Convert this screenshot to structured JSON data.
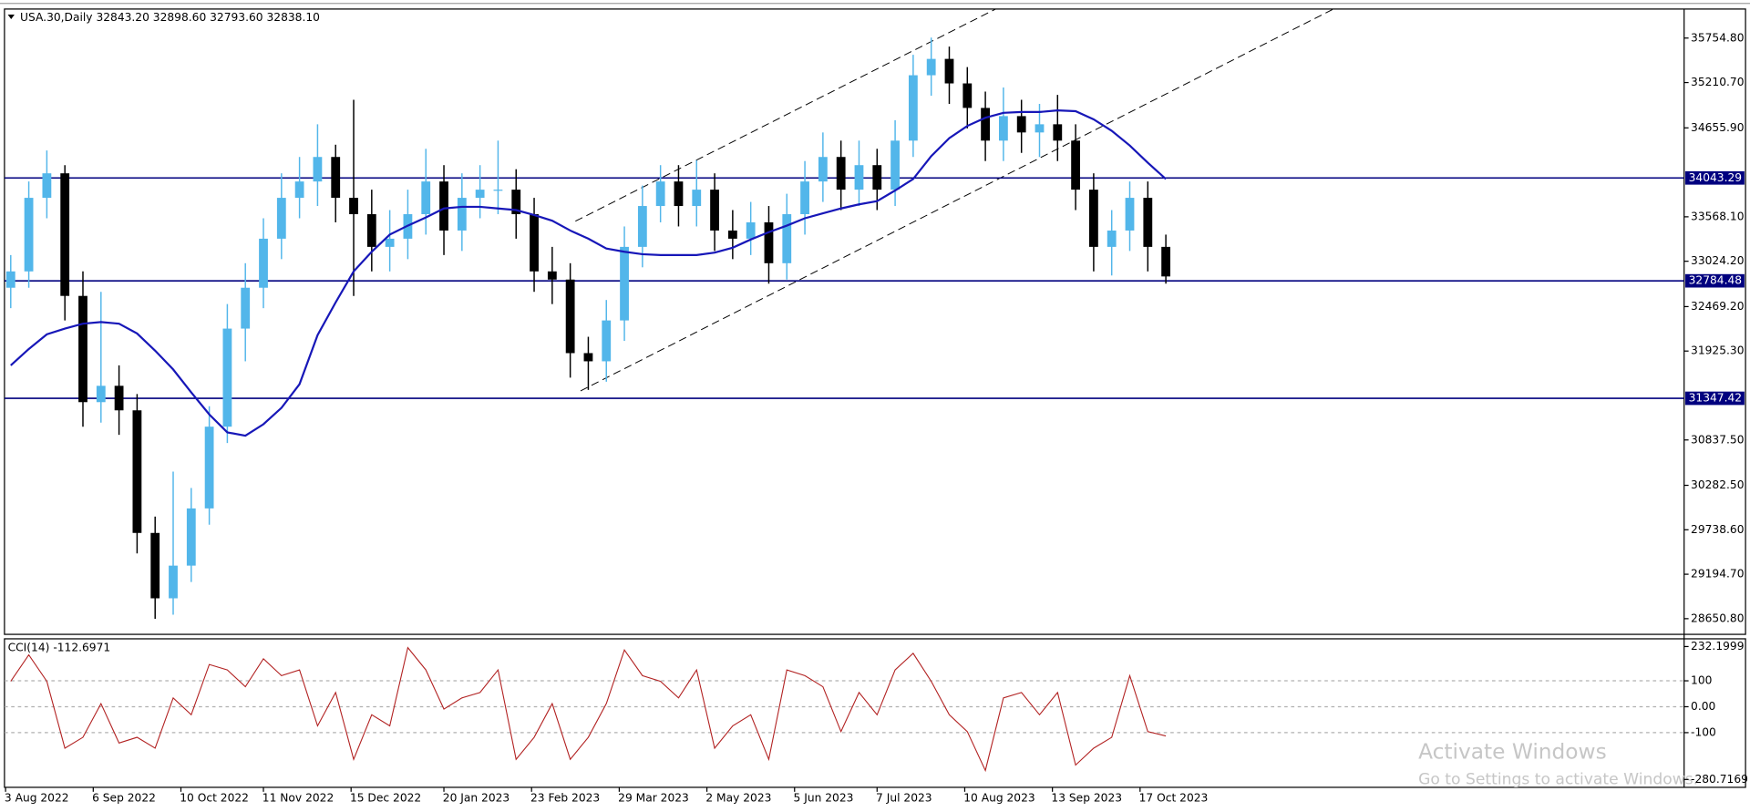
{
  "chart_data": [
    {
      "type": "candlestick",
      "title": "USA.30,Daily 32843.20 32898.60 32793.60 32838.10",
      "x": [
        "2022-08-05",
        "2022-08-12",
        "2022-08-19",
        "2022-08-26",
        "2022-09-02",
        "2022-09-09",
        "2022-09-16",
        "2022-09-23",
        "2022-09-30",
        "2022-10-07",
        "2022-10-14",
        "2022-10-21",
        "2022-10-28",
        "2022-11-04",
        "2022-11-11",
        "2022-11-18",
        "2022-11-25",
        "2022-12-02",
        "2022-12-09",
        "2022-12-16",
        "2022-12-23",
        "2022-12-30",
        "2023-01-06",
        "2023-01-13",
        "2023-01-20",
        "2023-01-27",
        "2023-02-03",
        "2023-02-10",
        "2023-02-17",
        "2023-02-24",
        "2023-03-03",
        "2023-03-10",
        "2023-03-17",
        "2023-03-24",
        "2023-03-31",
        "2023-04-07",
        "2023-04-14",
        "2023-04-21",
        "2023-04-28",
        "2023-05-05",
        "2023-05-12",
        "2023-05-19",
        "2023-05-26",
        "2023-06-02",
        "2023-06-09",
        "2023-06-16",
        "2023-06-23",
        "2023-06-30",
        "2023-07-07",
        "2023-07-14",
        "2023-07-21",
        "2023-07-28",
        "2023-08-04",
        "2023-08-11",
        "2023-08-18",
        "2023-08-25",
        "2023-09-01",
        "2023-09-08",
        "2023-09-15",
        "2023-09-22",
        "2023-09-29",
        "2023-10-06",
        "2023-10-13",
        "2023-10-20",
        "2023-10-27"
      ],
      "open": [
        32700,
        32900,
        33800,
        34100,
        32600,
        31300,
        31500,
        31200,
        29700,
        28900,
        29300,
        30000,
        31000,
        32200,
        32700,
        33300,
        33800,
        34000,
        34300,
        33800,
        33600,
        33200,
        33300,
        33600,
        34000,
        33400,
        33800,
        33900,
        33900,
        33600,
        32900,
        32800,
        31900,
        31800,
        32300,
        33200,
        33700,
        34000,
        33700,
        33900,
        33400,
        33300,
        33500,
        33000,
        33600,
        34000,
        34300,
        33900,
        34200,
        33900,
        34500,
        35300,
        35500,
        35200,
        34900,
        34500,
        34800,
        34600,
        34700,
        34500,
        33900,
        33200,
        33400,
        33800,
        33200
      ],
      "high": [
        33100,
        34000,
        34380,
        34200,
        32900,
        32650,
        31750,
        31400,
        29900,
        30450,
        30250,
        31250,
        32500,
        33000,
        33550,
        34100,
        34300,
        34700,
        34450,
        35000,
        33900,
        33650,
        33900,
        34400,
        34200,
        34100,
        34200,
        34500,
        34150,
        33800,
        33200,
        33000,
        32100,
        32550,
        33450,
        33950,
        34200,
        34200,
        34260,
        34100,
        33650,
        33750,
        33700,
        33850,
        34250,
        34600,
        34500,
        34500,
        34400,
        34750,
        35550,
        35760,
        35650,
        35400,
        35100,
        35150,
        35000,
        34950,
        35060,
        34700,
        34100,
        33650,
        34000,
        34000,
        33350
      ],
      "low": [
        32450,
        32700,
        33550,
        32300,
        31000,
        31050,
        30900,
        29450,
        28650,
        28700,
        29100,
        29800,
        30800,
        31800,
        32450,
        33050,
        33550,
        33700,
        33500,
        32600,
        32900,
        32900,
        33050,
        33350,
        33100,
        33150,
        33550,
        33600,
        33300,
        32650,
        32500,
        31600,
        31450,
        31550,
        32050,
        32950,
        33500,
        33450,
        33450,
        33150,
        33050,
        33100,
        32750,
        32800,
        33350,
        33750,
        33650,
        33700,
        33650,
        33700,
        34300,
        35050,
        34950,
        34650,
        34250,
        34250,
        34350,
        34300,
        34250,
        33650,
        32900,
        32850,
        33150,
        32900,
        32750
      ],
      "close": [
        32900,
        33800,
        34100,
        32600,
        31300,
        31500,
        31200,
        29700,
        28900,
        29300,
        30000,
        31000,
        32200,
        32700,
        33300,
        33800,
        34000,
        34300,
        33800,
        33600,
        33200,
        33300,
        33600,
        34000,
        33400,
        33800,
        33900,
        33900,
        33600,
        32900,
        32800,
        31900,
        31800,
        32300,
        33200,
        33700,
        34000,
        33700,
        33900,
        33400,
        33300,
        33500,
        33000,
        33600,
        34000,
        34300,
        33900,
        34200,
        33900,
        34500,
        35300,
        35500,
        35200,
        34900,
        34500,
        34800,
        34600,
        34700,
        34500,
        33900,
        33200,
        33400,
        33800,
        33200,
        32838.1
      ],
      "up_color": "#52b6ea",
      "down_color": "#000000",
      "overlay": {
        "color": "#1717b8",
        "values": [
          31750,
          31950,
          32130,
          32200,
          32260,
          32280,
          32260,
          32140,
          31930,
          31700,
          31420,
          31150,
          30930,
          30890,
          31030,
          31230,
          31520,
          32120,
          32520,
          32900,
          33140,
          33350,
          33460,
          33560,
          33670,
          33690,
          33690,
          33670,
          33650,
          33590,
          33520,
          33400,
          33300,
          33180,
          33140,
          33110,
          33100,
          33100,
          33100,
          33130,
          33190,
          33290,
          33380,
          33460,
          33550,
          33610,
          33670,
          33720,
          33760,
          33890,
          34030,
          34310,
          34530,
          34680,
          34780,
          34840,
          34850,
          34850,
          34870,
          34860,
          34760,
          34620,
          34440,
          34230,
          34030
        ]
      },
      "levels": [
        {
          "value": 34043.29,
          "label": "34043.29"
        },
        {
          "value": 32784.48,
          "label": "32784.48"
        },
        {
          "value": 31347.42,
          "label": "31347.42"
        }
      ],
      "level_color": "#00007f",
      "trendlines": [
        {
          "x": [
            "2023-03-14",
            "2023-12-31"
          ],
          "y": [
            31438,
            36110
          ]
        },
        {
          "x": [
            "2023-03-12",
            "2023-08-22"
          ],
          "y": [
            33514,
            36110
          ]
        }
      ],
      "xlim": [
        "2022-08-03",
        "2024-05-15"
      ],
      "ylim": [
        28459,
        36110
      ],
      "yticks": [
        {
          "value": 35754.8,
          "label": "35754.80"
        },
        {
          "value": 35210.7,
          "label": "35210.70"
        },
        {
          "value": 34655.9,
          "label": "34655.90"
        },
        {
          "value": 33568.1,
          "label": "33568.10"
        },
        {
          "value": 33024.2,
          "label": "33024.20"
        },
        {
          "value": 32469.2,
          "label": "32469.20"
        },
        {
          "value": 31925.3,
          "label": "31925.30"
        },
        {
          "value": 30837.5,
          "label": "30837.50"
        },
        {
          "value": 30282.5,
          "label": "30282.50"
        },
        {
          "value": 29738.6,
          "label": "29738.60"
        },
        {
          "value": 29194.7,
          "label": "29194.70"
        },
        {
          "value": 28650.8,
          "label": "28650.80"
        }
      ]
    },
    {
      "type": "line",
      "title": "CCI(14) -112.6971",
      "x": [
        "2022-08-05",
        "2022-08-12",
        "2022-08-19",
        "2022-08-26",
        "2022-09-02",
        "2022-09-09",
        "2022-09-16",
        "2022-09-23",
        "2022-09-30",
        "2022-10-07",
        "2022-10-14",
        "2022-10-21",
        "2022-10-28",
        "2022-11-04",
        "2022-11-11",
        "2022-11-18",
        "2022-11-25",
        "2022-12-02",
        "2022-12-09",
        "2022-12-16",
        "2022-12-23",
        "2022-12-30",
        "2023-01-06",
        "2023-01-13",
        "2023-01-20",
        "2023-01-27",
        "2023-02-03",
        "2023-02-10",
        "2023-02-17",
        "2023-02-24",
        "2023-03-03",
        "2023-03-10",
        "2023-03-17",
        "2023-03-24",
        "2023-03-31",
        "2023-04-07",
        "2023-04-14",
        "2023-04-21",
        "2023-04-28",
        "2023-05-05",
        "2023-05-12",
        "2023-05-19",
        "2023-05-26",
        "2023-06-02",
        "2023-06-09",
        "2023-06-16",
        "2023-06-23",
        "2023-06-30",
        "2023-07-07",
        "2023-07-14",
        "2023-07-21",
        "2023-07-28",
        "2023-08-04",
        "2023-08-11",
        "2023-08-18",
        "2023-08-25",
        "2023-09-01",
        "2023-09-08",
        "2023-09-15",
        "2023-09-22",
        "2023-09-29",
        "2023-10-06",
        "2023-10-13",
        "2023-10-20",
        "2023-10-27"
      ],
      "series": [
        {
          "color": "#b22222",
          "values": [
            98,
            200,
            98,
            -160,
            -118,
            12,
            -140,
            -118,
            -160,
            34,
            -31,
            163,
            142,
            77,
            185,
            120,
            142,
            -74,
            55,
            -203,
            -31,
            -74,
            228,
            142,
            -9,
            34,
            55,
            142,
            -203,
            -118,
            12,
            -203,
            -118,
            12,
            219,
            120,
            98,
            34,
            142,
            -160,
            -74,
            -31,
            -203,
            142,
            120,
            77,
            -96,
            55,
            -31,
            142,
            206,
            98,
            -31,
            -96,
            -246,
            34,
            55,
            -31,
            55,
            -225,
            -160,
            -118,
            120,
            -96,
            -112.6971
          ]
        }
      ],
      "xlim": [
        "2022-08-03",
        "2024-05-15"
      ],
      "ylim": [
        -311,
        262
      ],
      "yticks": [
        232.1999,
        100,
        {
          "value": 0,
          "label": "0.00"
        },
        -100,
        -280.7169
      ],
      "xticks": [
        {
          "value": "2022-08-03",
          "label": "3 Aug 2022"
        },
        {
          "value": "2022-09-06",
          "label": "6 Sep 2022"
        },
        {
          "value": "2022-10-10",
          "label": "10 Oct 2022"
        },
        {
          "value": "2022-11-11",
          "label": "11 Nov 2022"
        },
        {
          "value": "2022-12-15",
          "label": "15 Dec 2022"
        },
        {
          "value": "2023-01-20",
          "label": "20 Jan 2023"
        },
        {
          "value": "2023-02-23",
          "label": "23 Feb 2023"
        },
        {
          "value": "2023-03-29",
          "label": "29 Mar 2023"
        },
        {
          "value": "2023-05-02",
          "label": "2 May 2023"
        },
        {
          "value": "2023-06-05",
          "label": "5 Jun 2023"
        },
        {
          "value": "2023-07-07",
          "label": "7 Jul 2023"
        },
        {
          "value": "2023-08-10",
          "label": "10 Aug 2023"
        },
        {
          "value": "2023-09-13",
          "label": "13 Sep 2023"
        },
        {
          "value": "2023-10-17",
          "label": "17 Oct 2023"
        }
      ]
    }
  ],
  "watermark": {
    "title": "Activate Windows",
    "text": "Go to Settings to activate Windows."
  }
}
